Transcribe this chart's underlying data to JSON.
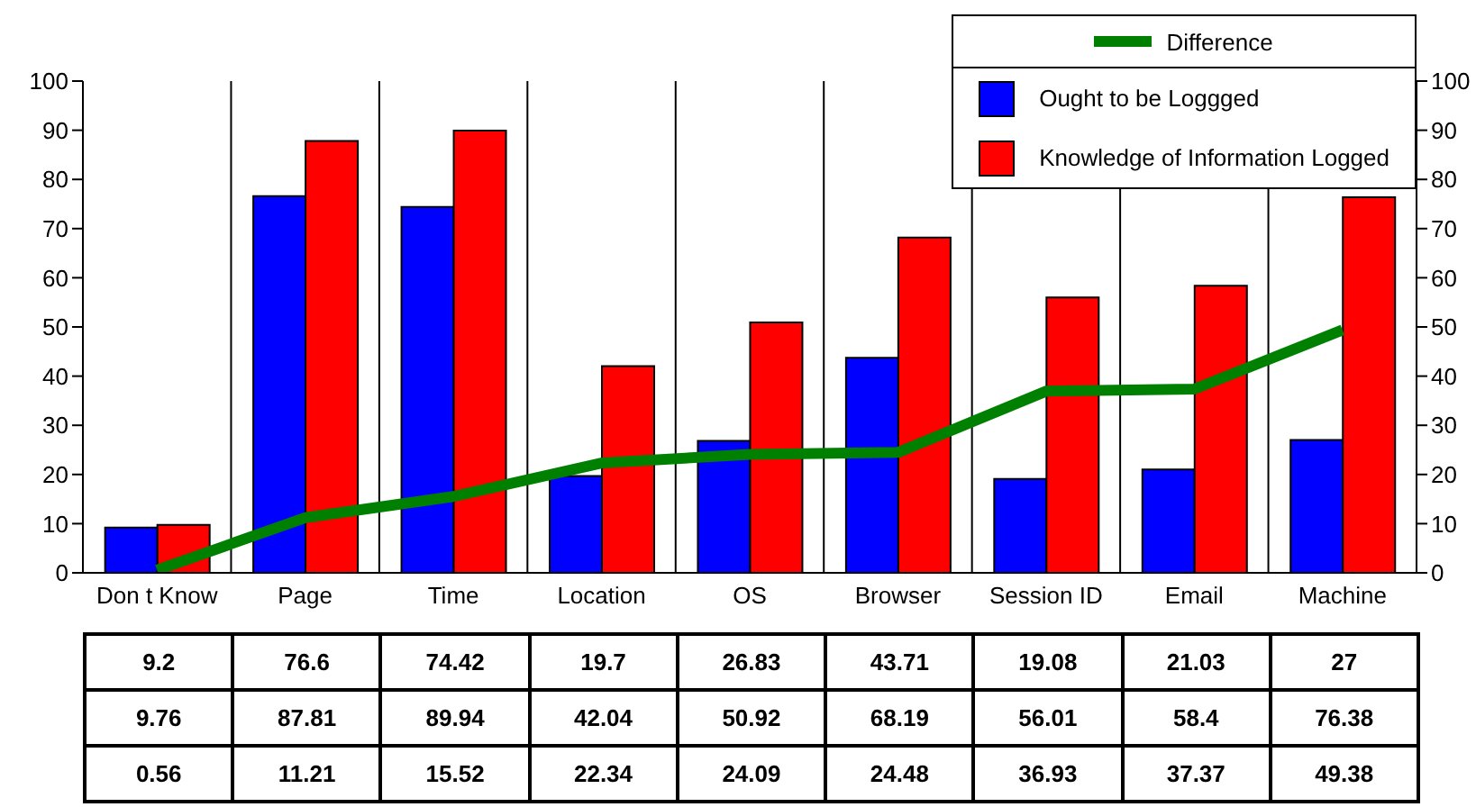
{
  "chart_data": {
    "type": "bar",
    "categories": [
      "Don t Know",
      "Page",
      "Time",
      "Location",
      "OS",
      "Browser",
      "Session ID",
      "Email",
      "Machine"
    ],
    "series": [
      {
        "name": "Ought to be Loggged",
        "color": "#0000ff",
        "values": [
          9.2,
          76.6,
          74.42,
          19.7,
          26.83,
          43.71,
          19.08,
          21.03,
          27
        ]
      },
      {
        "name": "Knowledge of Information Logged",
        "color": "#ff0000",
        "values": [
          9.76,
          87.81,
          89.94,
          42.04,
          50.92,
          68.19,
          56.01,
          58.4,
          76.38
        ]
      },
      {
        "name": "Difference",
        "type": "line",
        "color": "#008000",
        "values": [
          0.56,
          11.21,
          15.52,
          22.34,
          24.09,
          24.48,
          36.93,
          37.37,
          49.38
        ]
      }
    ],
    "ylim": [
      0,
      100
    ],
    "yticks": [
      0,
      10,
      20,
      30,
      40,
      50,
      60,
      70,
      80,
      90,
      100
    ],
    "y2lim": [
      0,
      100
    ],
    "y2ticks": [
      0,
      10,
      20,
      30,
      40,
      50,
      60,
      70,
      80,
      90,
      100
    ],
    "grid": "x",
    "legend": "top right",
    "marker": "none",
    "data_labels": true
  }
}
